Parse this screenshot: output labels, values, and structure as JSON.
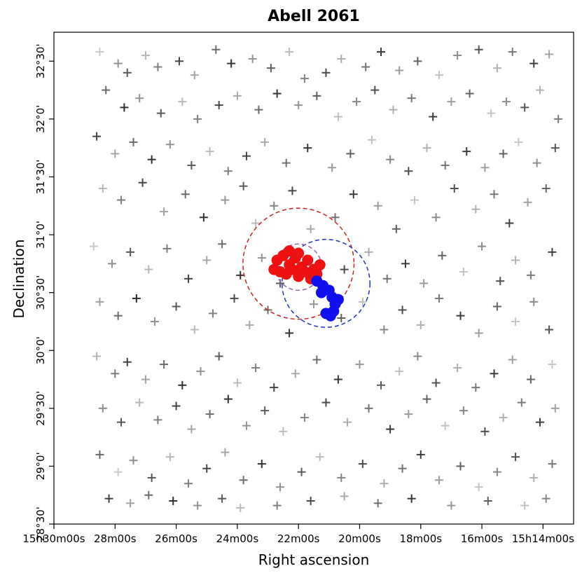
{
  "chart_data": {
    "type": "scatter",
    "title": "Abell 2061",
    "xlabel": "Right ascension",
    "ylabel": "Declination",
    "x_unit": "RA time (h:m) — decreasing to the right",
    "y_unit": "Dec (deg:arcmin)",
    "xlim_ra_minutes": [
      30.0,
      13.0
    ],
    "ylim_dec_deg": [
      28.5,
      32.75
    ],
    "x_ticks": [
      {
        "value": 30,
        "label": "15h30m00s"
      },
      {
        "value": 28,
        "label": "28m00s"
      },
      {
        "value": 26,
        "label": "26m00s"
      },
      {
        "value": 24,
        "label": "24m00s"
      },
      {
        "value": 22,
        "label": "22m00s"
      },
      {
        "value": 20,
        "label": "20m00s"
      },
      {
        "value": 18,
        "label": "18m00s"
      },
      {
        "value": 16,
        "label": "16m00s"
      },
      {
        "value": 14,
        "label": "15h14m00s"
      }
    ],
    "y_ticks": [
      {
        "value": 28.5,
        "label": "28°30'"
      },
      {
        "value": 29.0,
        "label": "29°0'"
      },
      {
        "value": 29.5,
        "label": "29°30'"
      },
      {
        "value": 30.0,
        "label": "30°0'"
      },
      {
        "value": 30.5,
        "label": "30°30'"
      },
      {
        "value": 31.0,
        "label": "31°0'"
      },
      {
        "value": 31.5,
        "label": "31°30'"
      },
      {
        "value": 32.0,
        "label": "32°0'"
      },
      {
        "value": 32.5,
        "label": "32°30'"
      }
    ],
    "series": [
      {
        "marker": "plus",
        "color_range": [
          "#c8c8c8",
          "#2e2e2e"
        ],
        "points": [
          [
            28.5,
            32.58
          ],
          [
            27.9,
            32.48
          ],
          [
            27.6,
            32.4
          ],
          [
            27.0,
            32.55
          ],
          [
            26.6,
            32.45
          ],
          [
            25.9,
            32.5
          ],
          [
            25.4,
            32.38
          ],
          [
            24.7,
            32.6
          ],
          [
            24.2,
            32.48
          ],
          [
            23.5,
            32.52
          ],
          [
            22.9,
            32.44
          ],
          [
            22.3,
            32.58
          ],
          [
            21.8,
            32.35
          ],
          [
            21.1,
            32.4
          ],
          [
            20.6,
            32.52
          ],
          [
            19.8,
            32.45
          ],
          [
            19.3,
            32.58
          ],
          [
            18.7,
            32.42
          ],
          [
            18.1,
            32.5
          ],
          [
            17.4,
            32.38
          ],
          [
            16.8,
            32.55
          ],
          [
            16.1,
            32.6
          ],
          [
            15.5,
            32.44
          ],
          [
            15.0,
            32.58
          ],
          [
            14.3,
            32.48
          ],
          [
            13.8,
            32.56
          ],
          [
            28.3,
            32.25
          ],
          [
            27.7,
            32.1
          ],
          [
            27.2,
            32.18
          ],
          [
            26.5,
            32.05
          ],
          [
            25.8,
            32.15
          ],
          [
            25.3,
            32.0
          ],
          [
            24.6,
            32.12
          ],
          [
            24.0,
            32.2
          ],
          [
            23.3,
            32.08
          ],
          [
            22.7,
            32.22
          ],
          [
            22.0,
            32.12
          ],
          [
            21.4,
            32.2
          ],
          [
            20.7,
            32.02
          ],
          [
            20.1,
            32.15
          ],
          [
            19.5,
            32.25
          ],
          [
            18.9,
            32.08
          ],
          [
            18.3,
            32.18
          ],
          [
            17.6,
            32.02
          ],
          [
            17.0,
            32.15
          ],
          [
            16.4,
            32.22
          ],
          [
            15.7,
            32.05
          ],
          [
            15.2,
            32.15
          ],
          [
            14.6,
            32.1
          ],
          [
            14.1,
            32.25
          ],
          [
            13.5,
            32.0
          ],
          [
            28.6,
            31.85
          ],
          [
            28.0,
            31.7
          ],
          [
            27.4,
            31.8
          ],
          [
            26.8,
            31.65
          ],
          [
            26.2,
            31.78
          ],
          [
            25.5,
            31.6
          ],
          [
            24.9,
            31.72
          ],
          [
            24.3,
            31.55
          ],
          [
            23.7,
            31.68
          ],
          [
            23.1,
            31.8
          ],
          [
            22.4,
            31.62
          ],
          [
            21.7,
            31.75
          ],
          [
            20.9,
            31.58
          ],
          [
            20.3,
            31.7
          ],
          [
            19.6,
            31.82
          ],
          [
            19.0,
            31.65
          ],
          [
            18.4,
            31.55
          ],
          [
            17.8,
            31.75
          ],
          [
            17.2,
            31.6
          ],
          [
            16.5,
            31.72
          ],
          [
            15.9,
            31.58
          ],
          [
            15.3,
            31.7
          ],
          [
            14.8,
            31.8
          ],
          [
            14.2,
            31.62
          ],
          [
            13.6,
            31.75
          ],
          [
            28.4,
            31.4
          ],
          [
            27.8,
            31.3
          ],
          [
            27.1,
            31.45
          ],
          [
            26.4,
            31.2
          ],
          [
            25.7,
            31.35
          ],
          [
            25.1,
            31.15
          ],
          [
            24.4,
            31.3
          ],
          [
            23.8,
            31.42
          ],
          [
            23.4,
            31.1
          ],
          [
            22.8,
            31.25
          ],
          [
            22.2,
            31.38
          ],
          [
            21.6,
            31.05
          ],
          [
            20.8,
            31.15
          ],
          [
            20.2,
            31.35
          ],
          [
            19.4,
            31.25
          ],
          [
            18.8,
            31.05
          ],
          [
            18.2,
            31.3
          ],
          [
            17.5,
            31.15
          ],
          [
            16.9,
            31.4
          ],
          [
            16.2,
            31.22
          ],
          [
            15.6,
            31.35
          ],
          [
            15.1,
            31.1
          ],
          [
            14.5,
            31.28
          ],
          [
            13.9,
            31.4
          ],
          [
            28.7,
            30.9
          ],
          [
            28.1,
            30.75
          ],
          [
            27.5,
            30.85
          ],
          [
            26.9,
            30.7
          ],
          [
            26.3,
            30.88
          ],
          [
            25.6,
            30.62
          ],
          [
            25.0,
            30.78
          ],
          [
            24.5,
            30.92
          ],
          [
            23.9,
            30.65
          ],
          [
            23.2,
            30.8
          ],
          [
            22.6,
            30.58
          ],
          [
            21.9,
            30.68
          ],
          [
            21.2,
            30.55
          ],
          [
            20.5,
            30.7
          ],
          [
            19.7,
            30.85
          ],
          [
            19.1,
            30.62
          ],
          [
            18.5,
            30.75
          ],
          [
            17.9,
            30.58
          ],
          [
            17.3,
            30.82
          ],
          [
            16.6,
            30.68
          ],
          [
            16.0,
            30.9
          ],
          [
            15.4,
            30.6
          ],
          [
            14.9,
            30.78
          ],
          [
            14.4,
            30.65
          ],
          [
            13.7,
            30.85
          ],
          [
            28.5,
            30.42
          ],
          [
            27.9,
            30.3
          ],
          [
            27.3,
            30.45
          ],
          [
            26.7,
            30.25
          ],
          [
            26.0,
            30.38
          ],
          [
            25.4,
            30.18
          ],
          [
            24.8,
            30.32
          ],
          [
            24.1,
            30.45
          ],
          [
            23.6,
            30.22
          ],
          [
            23.0,
            30.35
          ],
          [
            22.3,
            30.15
          ],
          [
            21.5,
            30.4
          ],
          [
            20.6,
            30.28
          ],
          [
            19.9,
            30.42
          ],
          [
            19.2,
            30.18
          ],
          [
            18.6,
            30.35
          ],
          [
            18.0,
            30.22
          ],
          [
            17.4,
            30.45
          ],
          [
            16.7,
            30.3
          ],
          [
            16.1,
            30.15
          ],
          [
            15.5,
            30.38
          ],
          [
            14.9,
            30.25
          ],
          [
            14.3,
            30.42
          ],
          [
            13.8,
            30.18
          ],
          [
            28.6,
            29.95
          ],
          [
            28.0,
            29.8
          ],
          [
            27.6,
            29.9
          ],
          [
            27.0,
            29.75
          ],
          [
            26.4,
            29.88
          ],
          [
            25.8,
            29.7
          ],
          [
            25.2,
            29.82
          ],
          [
            24.6,
            29.95
          ],
          [
            24.0,
            29.72
          ],
          [
            23.4,
            29.85
          ],
          [
            22.8,
            29.68
          ],
          [
            22.1,
            29.8
          ],
          [
            21.4,
            29.92
          ],
          [
            20.7,
            29.75
          ],
          [
            20.0,
            29.88
          ],
          [
            19.3,
            29.7
          ],
          [
            18.7,
            29.82
          ],
          [
            18.1,
            29.95
          ],
          [
            17.5,
            29.72
          ],
          [
            16.8,
            29.85
          ],
          [
            16.2,
            29.68
          ],
          [
            15.6,
            29.8
          ],
          [
            15.0,
            29.92
          ],
          [
            14.4,
            29.75
          ],
          [
            13.7,
            29.88
          ],
          [
            28.4,
            29.5
          ],
          [
            27.8,
            29.38
          ],
          [
            27.2,
            29.55
          ],
          [
            26.6,
            29.4
          ],
          [
            26.0,
            29.52
          ],
          [
            25.5,
            29.32
          ],
          [
            24.9,
            29.45
          ],
          [
            24.3,
            29.58
          ],
          [
            23.7,
            29.35
          ],
          [
            23.1,
            29.48
          ],
          [
            22.5,
            29.3
          ],
          [
            21.8,
            29.42
          ],
          [
            21.1,
            29.55
          ],
          [
            20.4,
            29.38
          ],
          [
            19.7,
            29.5
          ],
          [
            19.0,
            29.32
          ],
          [
            18.4,
            29.45
          ],
          [
            17.8,
            29.58
          ],
          [
            17.2,
            29.35
          ],
          [
            16.6,
            29.48
          ],
          [
            15.9,
            29.3
          ],
          [
            15.3,
            29.42
          ],
          [
            14.7,
            29.55
          ],
          [
            14.1,
            29.38
          ],
          [
            13.6,
            29.5
          ],
          [
            28.5,
            29.1
          ],
          [
            27.9,
            28.95
          ],
          [
            27.4,
            29.05
          ],
          [
            26.8,
            28.9
          ],
          [
            26.2,
            29.08
          ],
          [
            25.6,
            28.85
          ],
          [
            25.0,
            28.98
          ],
          [
            24.4,
            29.12
          ],
          [
            23.8,
            28.88
          ],
          [
            23.2,
            29.02
          ],
          [
            22.6,
            28.82
          ],
          [
            21.9,
            28.95
          ],
          [
            21.3,
            29.08
          ],
          [
            20.6,
            28.9
          ],
          [
            19.9,
            29.02
          ],
          [
            19.2,
            28.85
          ],
          [
            18.6,
            28.98
          ],
          [
            18.0,
            29.1
          ],
          [
            17.4,
            28.88
          ],
          [
            16.7,
            29.0
          ],
          [
            16.1,
            28.82
          ],
          [
            15.5,
            28.95
          ],
          [
            14.9,
            29.08
          ],
          [
            14.3,
            28.9
          ],
          [
            13.7,
            29.02
          ],
          [
            28.2,
            28.72
          ],
          [
            27.5,
            28.68
          ],
          [
            26.9,
            28.75
          ],
          [
            26.1,
            28.7
          ],
          [
            25.3,
            28.66
          ],
          [
            24.5,
            28.72
          ],
          [
            23.9,
            28.64
          ],
          [
            22.7,
            28.66
          ],
          [
            21.6,
            28.7
          ],
          [
            20.5,
            28.74
          ],
          [
            19.4,
            28.68
          ],
          [
            18.3,
            28.72
          ],
          [
            17.0,
            28.66
          ],
          [
            15.8,
            28.7
          ],
          [
            14.6,
            28.66
          ],
          [
            13.9,
            28.72
          ]
        ]
      },
      {
        "name": "",
        "marker": "dot",
        "color": "#ee1111",
        "points": [
          [
            22.7,
            30.78
          ],
          [
            22.5,
            30.82
          ],
          [
            22.3,
            30.74
          ],
          [
            22.1,
            30.8
          ],
          [
            21.9,
            30.72
          ],
          [
            21.7,
            30.78
          ],
          [
            21.5,
            30.7
          ],
          [
            21.3,
            30.74
          ],
          [
            22.6,
            30.68
          ],
          [
            22.4,
            30.66
          ],
          [
            22.2,
            30.7
          ],
          [
            22.0,
            30.64
          ],
          [
            21.8,
            30.68
          ],
          [
            21.6,
            30.62
          ],
          [
            22.3,
            30.86
          ],
          [
            22.0,
            30.84
          ],
          [
            21.4,
            30.66
          ],
          [
            22.8,
            30.7
          ]
        ]
      },
      {
        "name": "",
        "marker": "dot",
        "color": "#1010ee",
        "points": [
          [
            21.4,
            30.6
          ],
          [
            21.2,
            30.56
          ],
          [
            21.0,
            30.52
          ],
          [
            20.9,
            30.46
          ],
          [
            20.8,
            30.4
          ],
          [
            20.85,
            30.34
          ],
          [
            20.95,
            30.3
          ],
          [
            21.1,
            30.32
          ],
          [
            21.25,
            30.5
          ],
          [
            20.7,
            30.44
          ]
        ]
      }
    ],
    "circles": [
      {
        "color": "#cc2222",
        "style": "dashed",
        "center_ra": 22.0,
        "center_dec": 30.75,
        "radius_deg": 0.48
      },
      {
        "color": "#2233cc",
        "style": "dashed",
        "center_ra": 21.1,
        "center_dec": 30.58,
        "radius_deg": 0.38
      },
      {
        "color": "#9966aa",
        "style": "dashed",
        "center_ra": 22.0,
        "center_dec": 30.72,
        "radius_deg": 0.2
      }
    ]
  }
}
